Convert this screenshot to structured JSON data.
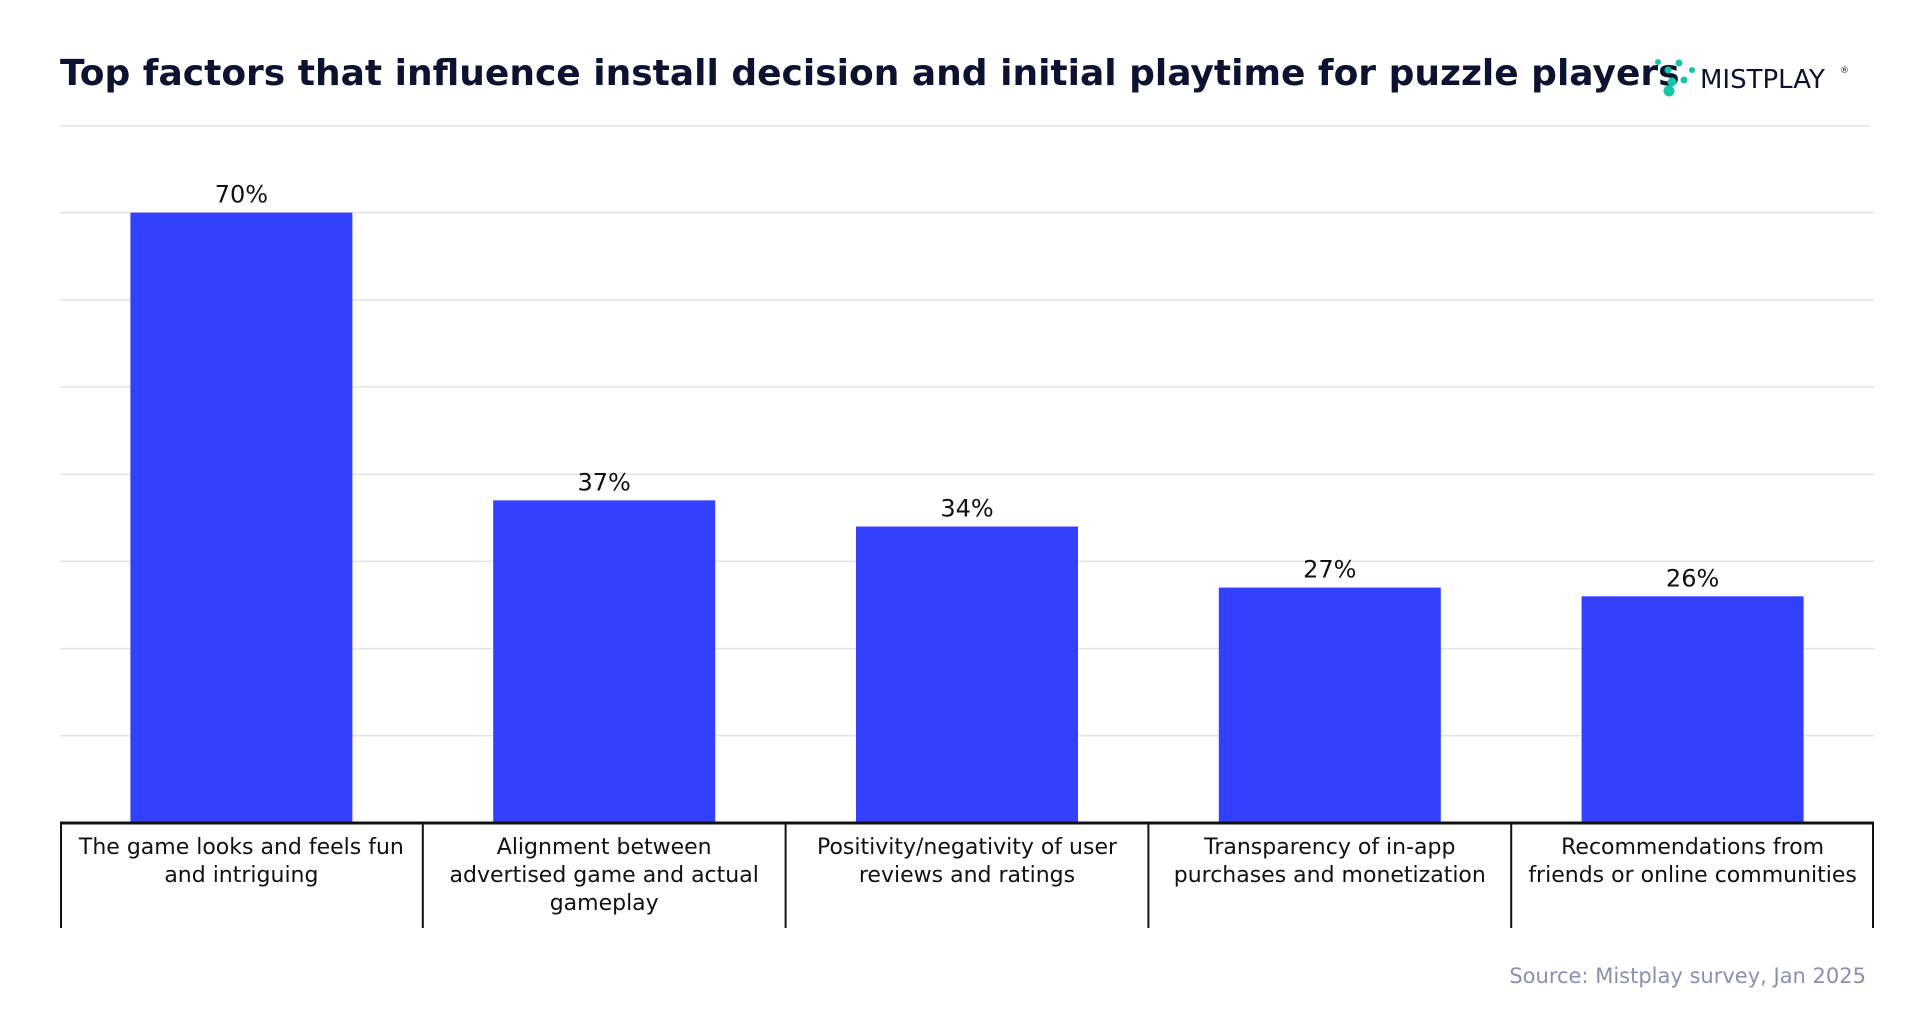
{
  "colors": {
    "bar": "#3341FF",
    "title": "#0b1330",
    "grid": "#e3e3e3",
    "axis": "#111111",
    "source": "#8a8fb0",
    "logo_dots": "#16c6a6"
  },
  "brand": {
    "name": "MISTPLAY",
    "registered": "®",
    "icon": "dot-cluster-icon"
  },
  "source": "Source: Mistplay survey, Jan 2025",
  "chart_data": {
    "type": "bar",
    "title": "Top factors that influence install decision and initial playtime for puzzle players",
    "xlabel": "",
    "ylabel": "",
    "ylim": [
      0,
      70
    ],
    "grid": true,
    "categories": [
      "The game looks and feels fun and intriguing",
      "Alignment between advertised game and actual gameplay",
      "Positivity/negativity of user reviews and ratings",
      "Transparency of in-app purchases and monetization",
      "Recommendations from friends or online communities"
    ],
    "category_lines": [
      [
        "The game looks and feels fun",
        "and intriguing"
      ],
      [
        "Alignment between",
        "advertised game and actual",
        "gameplay"
      ],
      [
        "Positivity/negativity of user",
        "reviews and ratings"
      ],
      [
        "Transparency of in-app",
        "purchases and monetization"
      ],
      [
        "Recommendations from",
        "friends or online communities"
      ]
    ],
    "values": [
      70,
      37,
      34,
      27,
      26
    ],
    "data_labels": [
      "70%",
      "37%",
      "34%",
      "27%",
      "26%"
    ]
  }
}
